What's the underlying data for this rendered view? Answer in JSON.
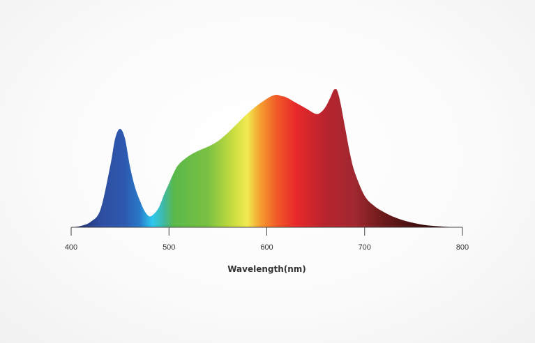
{
  "chart_data": {
    "type": "area",
    "title": "",
    "xlabel": "Wavelength(nm)",
    "ylabel": "",
    "xlim": [
      400,
      800
    ],
    "ylim": [
      0,
      1
    ],
    "xticks": [
      400,
      500,
      600,
      700,
      800
    ],
    "grid": false,
    "series": [
      {
        "x": [
          400,
          410,
          420,
          430,
          440,
          445,
          450,
          455,
          460,
          465,
          470,
          475,
          480,
          485,
          490,
          495,
          500,
          505,
          510,
          520,
          530,
          540,
          550,
          560,
          570,
          580,
          590,
          600,
          605,
          610,
          615,
          620,
          630,
          640,
          650,
          655,
          660,
          665,
          668,
          670,
          672,
          675,
          680,
          685,
          690,
          700,
          710,
          720,
          730,
          740,
          750,
          760,
          770,
          780,
          790,
          800
        ],
        "y": [
          0.0,
          0.01,
          0.04,
          0.13,
          0.45,
          0.65,
          0.72,
          0.65,
          0.45,
          0.3,
          0.2,
          0.12,
          0.08,
          0.1,
          0.15,
          0.24,
          0.32,
          0.4,
          0.46,
          0.52,
          0.56,
          0.59,
          0.63,
          0.69,
          0.76,
          0.83,
          0.89,
          0.94,
          0.96,
          0.97,
          0.96,
          0.95,
          0.91,
          0.87,
          0.83,
          0.84,
          0.88,
          0.95,
          1.0,
          1.01,
          1.0,
          0.92,
          0.73,
          0.54,
          0.4,
          0.23,
          0.155,
          0.11,
          0.075,
          0.05,
          0.032,
          0.018,
          0.01,
          0.005,
          0.002,
          0.0
        ]
      }
    ],
    "colors": {
      "gradient_stops": [
        {
          "wl": 400,
          "color": "#1a2560"
        },
        {
          "wl": 430,
          "color": "#2e4da0"
        },
        {
          "wl": 455,
          "color": "#2d5ab0"
        },
        {
          "wl": 470,
          "color": "#2878c8"
        },
        {
          "wl": 483,
          "color": "#2ec8f0"
        },
        {
          "wl": 495,
          "color": "#40b8a0"
        },
        {
          "wl": 505,
          "color": "#5ab84a"
        },
        {
          "wl": 540,
          "color": "#7ac142"
        },
        {
          "wl": 565,
          "color": "#c8dc40"
        },
        {
          "wl": 580,
          "color": "#f2ea50"
        },
        {
          "wl": 593,
          "color": "#f5a030"
        },
        {
          "wl": 610,
          "color": "#f05a28"
        },
        {
          "wl": 630,
          "color": "#e8282a"
        },
        {
          "wl": 660,
          "color": "#b8242e"
        },
        {
          "wl": 690,
          "color": "#a02830"
        },
        {
          "wl": 720,
          "color": "#6a1a1a"
        },
        {
          "wl": 760,
          "color": "#3a0c0c"
        },
        {
          "wl": 800,
          "color": "#2a0808"
        }
      ],
      "axis": "#444444",
      "label": "#333333"
    }
  }
}
